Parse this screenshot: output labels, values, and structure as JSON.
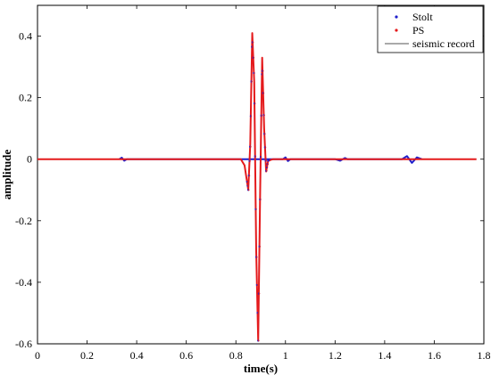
{
  "chart_data": {
    "type": "line",
    "title": "",
    "xlabel": "time(s)",
    "ylabel": "amplitude",
    "xlim": [
      0,
      1.8
    ],
    "ylim": [
      -0.6,
      0.5
    ],
    "xticks": [
      0,
      0.2,
      0.4,
      0.6,
      0.8,
      1,
      1.2,
      1.4,
      1.6,
      1.8
    ],
    "xtick_labels": [
      "0",
      "0.2",
      "0.4",
      "0.6",
      "0.8",
      "1",
      "1.2",
      "1.4",
      "1.6",
      "1.8"
    ],
    "yticks": [
      -0.6,
      -0.4,
      -0.2,
      0,
      0.2,
      0.4
    ],
    "ytick_labels": [
      "-0.6",
      "-0.4",
      "-0.2",
      "0",
      "0.2",
      "0.4"
    ],
    "grid": false,
    "legend_position": "top-right",
    "x_end": 1.77,
    "legend": [
      {
        "label": "Stolt",
        "style": "dot",
        "color": "#1f1fcc"
      },
      {
        "label": "PS",
        "style": "dot",
        "color": "#e41a1c"
      },
      {
        "label": "seismic record",
        "style": "line",
        "color": "#555555"
      }
    ],
    "series": [
      {
        "name": "seismic record",
        "color": "#555555",
        "points": [
          [
            0,
            0
          ],
          [
            0.82,
            0
          ],
          [
            0.835,
            -0.02
          ],
          [
            0.85,
            -0.1
          ],
          [
            0.858,
            0.05
          ],
          [
            0.866,
            0.41
          ],
          [
            0.874,
            0.25
          ],
          [
            0.882,
            -0.3
          ],
          [
            0.89,
            -0.59
          ],
          [
            0.898,
            -0.1
          ],
          [
            0.906,
            0.33
          ],
          [
            0.914,
            0.1
          ],
          [
            0.922,
            -0.04
          ],
          [
            0.93,
            -0.005
          ],
          [
            0.95,
            0
          ],
          [
            1.77,
            0
          ]
        ]
      },
      {
        "name": "PS",
        "color": "#e41a1c",
        "points": [
          [
            0,
            0
          ],
          [
            0.82,
            0
          ],
          [
            0.835,
            -0.02
          ],
          [
            0.85,
            -0.1
          ],
          [
            0.858,
            0.05
          ],
          [
            0.866,
            0.41
          ],
          [
            0.874,
            0.25
          ],
          [
            0.882,
            -0.3
          ],
          [
            0.89,
            -0.59
          ],
          [
            0.898,
            -0.1
          ],
          [
            0.906,
            0.33
          ],
          [
            0.914,
            0.1
          ],
          [
            0.922,
            -0.04
          ],
          [
            0.93,
            -0.005
          ],
          [
            0.95,
            0
          ],
          [
            1.77,
            0
          ]
        ]
      },
      {
        "name": "Stolt",
        "color": "#1f1fcc",
        "points": [
          [
            0.33,
            0
          ],
          [
            0.34,
            0.005
          ],
          [
            0.35,
            -0.005
          ],
          [
            0.36,
            0
          ],
          [
            0.99,
            0
          ],
          [
            1.0,
            0.006
          ],
          [
            1.01,
            -0.006
          ],
          [
            1.02,
            0
          ],
          [
            1.2,
            0
          ],
          [
            1.22,
            -0.005
          ],
          [
            1.24,
            0.004
          ],
          [
            1.25,
            0
          ],
          [
            1.47,
            0
          ],
          [
            1.49,
            0.01
          ],
          [
            1.51,
            -0.012
          ],
          [
            1.53,
            0.006
          ],
          [
            1.55,
            0
          ]
        ]
      }
    ]
  }
}
